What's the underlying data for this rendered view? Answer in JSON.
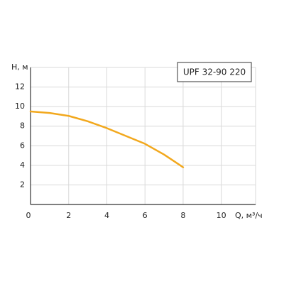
{
  "chart_data": {
    "type": "line",
    "x_label": "Q, м³/ч",
    "y_label": "H, м",
    "x": [
      0,
      1,
      2,
      3,
      4,
      5,
      6,
      7,
      8
    ],
    "series": [
      {
        "name": "UPF 32-90 220",
        "color": "#f2a81d",
        "values": [
          9.5,
          9.35,
          9.05,
          8.5,
          7.8,
          7.0,
          6.2,
          5.1,
          3.8
        ]
      }
    ],
    "xlim": [
      0,
      11.8
    ],
    "ylim": [
      0,
      14
    ],
    "xticks": [
      0,
      2,
      4,
      6,
      8,
      10
    ],
    "yticks": [
      2,
      4,
      6,
      8,
      10,
      12
    ],
    "grid": true
  }
}
